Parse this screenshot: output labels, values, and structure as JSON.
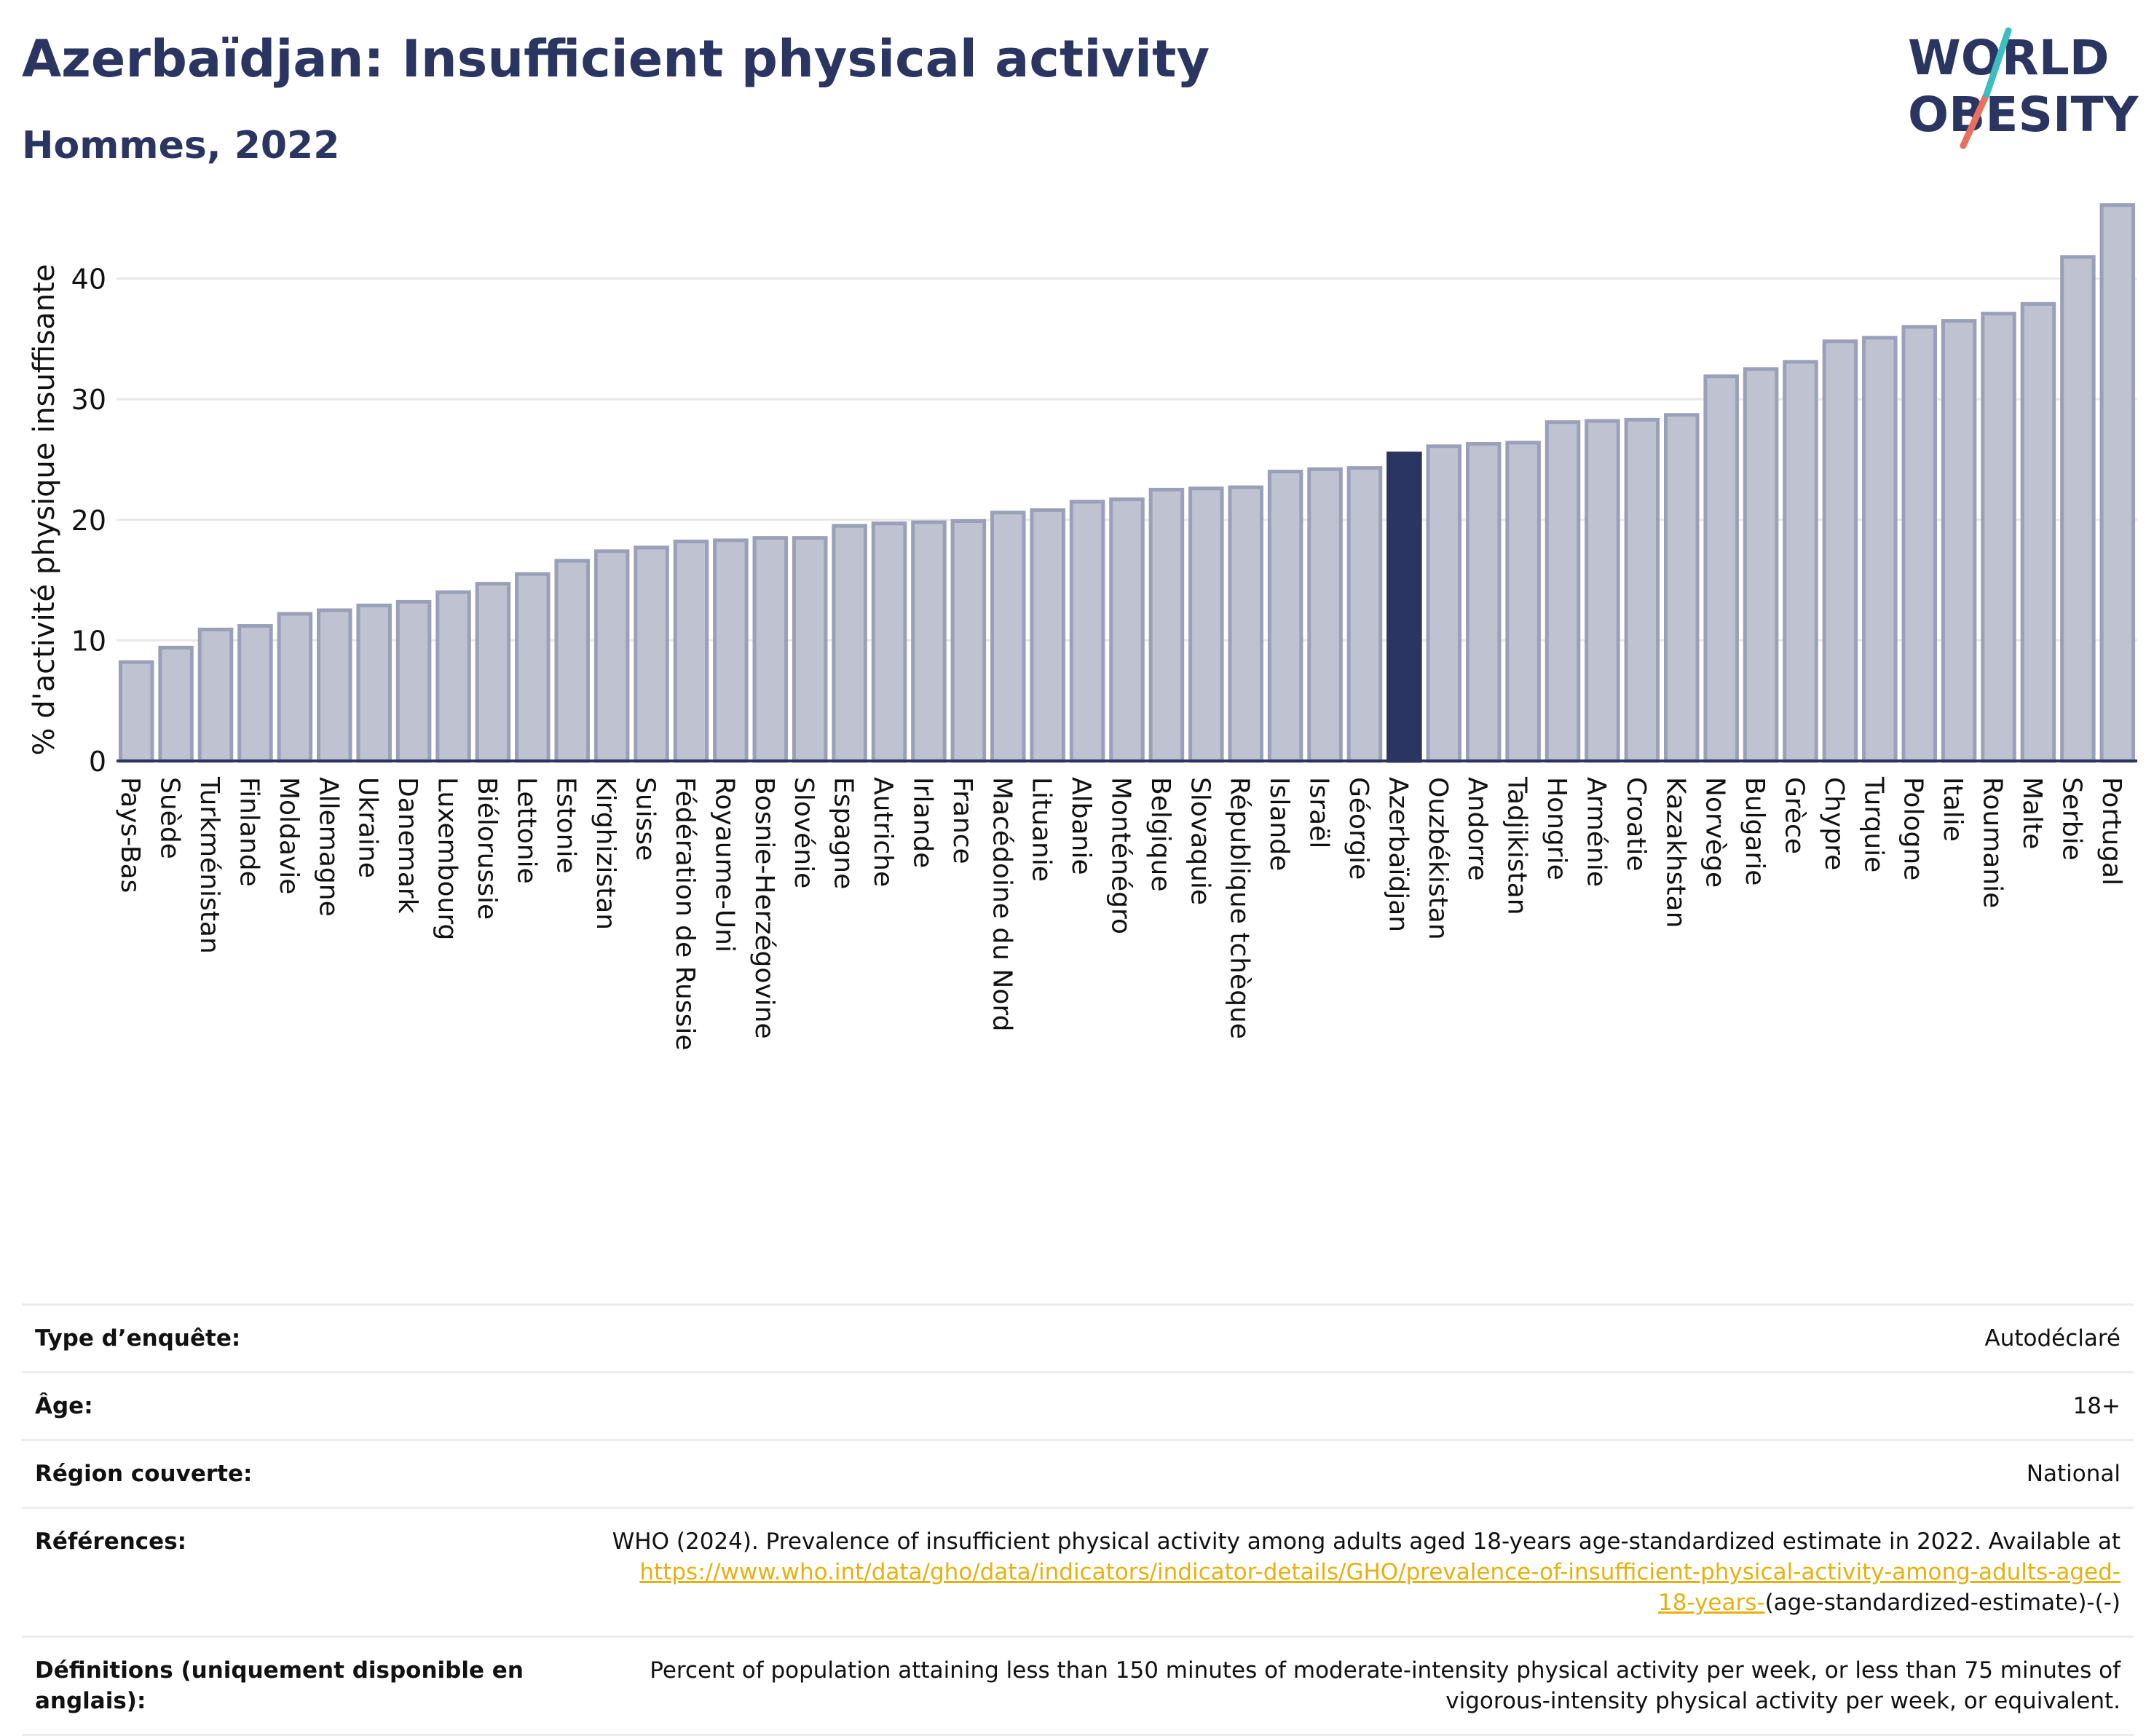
{
  "title": "Azerbaïdjan: Insufficient physical activity",
  "subtitle": "Hommes, 2022",
  "logo": {
    "line1": "WORLD",
    "line2": "OBESITY"
  },
  "colors": {
    "bar": "#bec2d1",
    "bar_edge": "#9aa0b8",
    "highlight": "#2b3561",
    "text": "#2b3561",
    "grid": "#e8e8e8",
    "accent_teal": "#3dbdbd",
    "accent_coral": "#e8705f",
    "link": "#e6b012"
  },
  "chart_data": {
    "type": "bar",
    "title": "Azerbaïdjan: Insufficient physical activity",
    "subtitle": "Hommes, 2022",
    "xlabel": "",
    "ylabel": "% d'activité physique insuffisante",
    "ylim": [
      0,
      46.5
    ],
    "yticks": [
      0,
      10,
      20,
      30,
      40
    ],
    "grid": true,
    "highlight": "Azerbaïdjan",
    "categories": [
      "Pays-Bas",
      "Suède",
      "Turkménistan",
      "Finlande",
      "Moldavie",
      "Allemagne",
      "Ukraine",
      "Danemark",
      "Luxembourg",
      "Biélorussie",
      "Lettonie",
      "Estonie",
      "Kirghizistan",
      "Suisse",
      "Fédération de Russie",
      "Royaume-Uni",
      "Bosnie-Herzégovine",
      "Slovénie",
      "Espagne",
      "Autriche",
      "Irlande",
      "France",
      "Macédoine du Nord",
      "Lituanie",
      "Albanie",
      "Monténégro",
      "Belgique",
      "Slovaquie",
      "République tchèque",
      "Islande",
      "Israël",
      "Géorgie",
      "Azerbaïdjan",
      "Ouzbékistan",
      "Andorre",
      "Tadjikistan",
      "Hongrie",
      "Arménie",
      "Croatie",
      "Kazakhstan",
      "Norvège",
      "Bulgarie",
      "Grèce",
      "Chypre",
      "Turquie",
      "Pologne",
      "Italie",
      "Roumanie",
      "Malte",
      "Serbie",
      "Portugal"
    ],
    "values": [
      8.2,
      9.4,
      10.9,
      11.2,
      12.2,
      12.5,
      12.9,
      13.2,
      14.0,
      14.7,
      15.5,
      16.6,
      17.4,
      17.7,
      18.2,
      18.3,
      18.5,
      18.5,
      19.5,
      19.7,
      19.8,
      19.9,
      20.6,
      20.8,
      21.5,
      21.7,
      22.5,
      22.6,
      22.7,
      24.0,
      24.2,
      24.3,
      25.5,
      26.1,
      26.3,
      26.4,
      28.1,
      28.2,
      28.3,
      28.7,
      31.9,
      32.5,
      33.1,
      34.8,
      35.1,
      36.0,
      36.5,
      37.1,
      37.9,
      41.8,
      46.1
    ]
  },
  "info": {
    "survey_type": {
      "label": "Type d’enquête:",
      "value": "Autodéclaré"
    },
    "age": {
      "label": "Âge:",
      "value": "18+"
    },
    "region": {
      "label": "Région couverte:",
      "value": "National"
    },
    "references": {
      "label": "Références:",
      "text_line1": "WHO (2024). Prevalence of insufficient physical activity among adults aged 18-years age-standardized estimate in 2022. Available at",
      "link_part1": "https://www.who.int/data/gho/data/indicators/indicator-details/GHO/prevalence-of-insufficient-physical-activity-among-adults-aged-",
      "link_part2": "18-years-",
      "text_after_link": "(age-standardized-estimate)-(-)"
    },
    "definitions": {
      "label": "Définitions (uniquement disponible en anglais):",
      "value": "Percent of population attaining less than 150 minutes of moderate-intensity physical activity per week, or less than 75 minutes of vigorous-intensity physical activity per week, or equivalent."
    }
  }
}
